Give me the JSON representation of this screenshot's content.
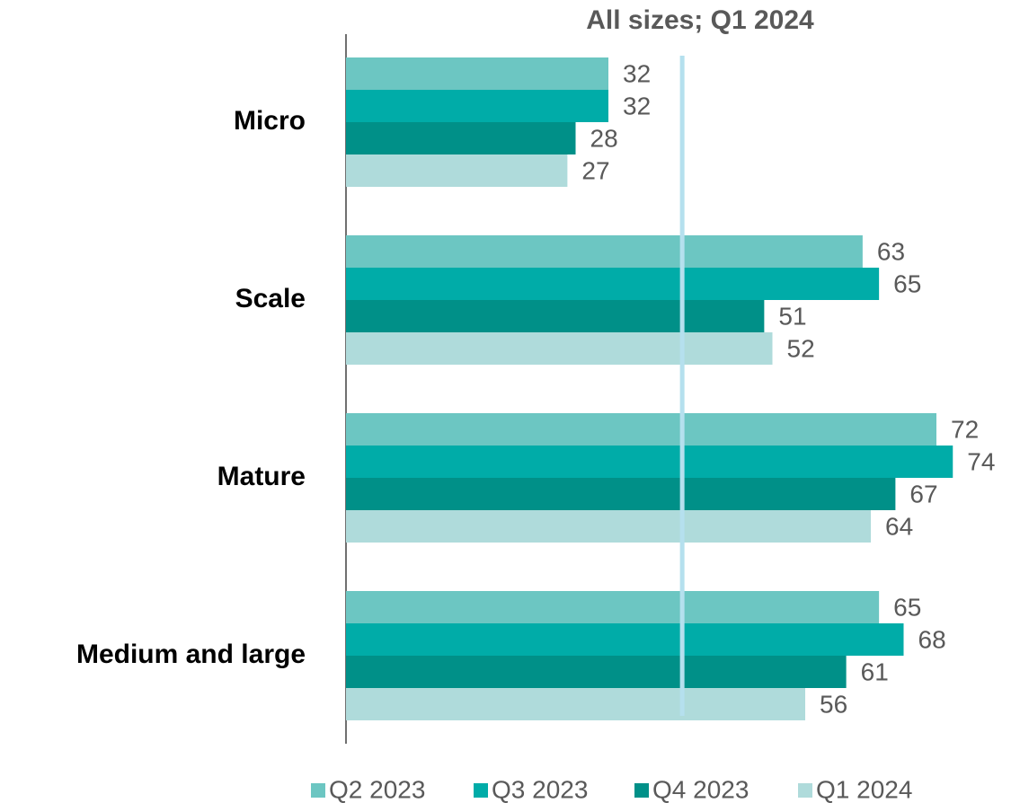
{
  "chart_data": {
    "type": "hbar",
    "categories": [
      "Micro",
      "Scale",
      "Mature",
      "Medium and large"
    ],
    "series": [
      {
        "name": "Q2 2023",
        "color": "#6cc6c2",
        "values": [
          32,
          63,
          72,
          65
        ]
      },
      {
        "name": "Q3 2023",
        "color": "#00aca8",
        "values": [
          32,
          65,
          74,
          68
        ]
      },
      {
        "name": "Q4 2023",
        "color": "#009088",
        "values": [
          28,
          51,
          67,
          61
        ]
      },
      {
        "name": "Q1 2024",
        "color": "#afdbdb",
        "values": [
          27,
          52,
          64,
          56
        ]
      }
    ],
    "xlim": [
      0,
      80
    ],
    "reference_line": {
      "value": 41,
      "label": "All sizes; Q1 2024",
      "color": "#b5e0ee"
    },
    "legend": "bottom"
  }
}
